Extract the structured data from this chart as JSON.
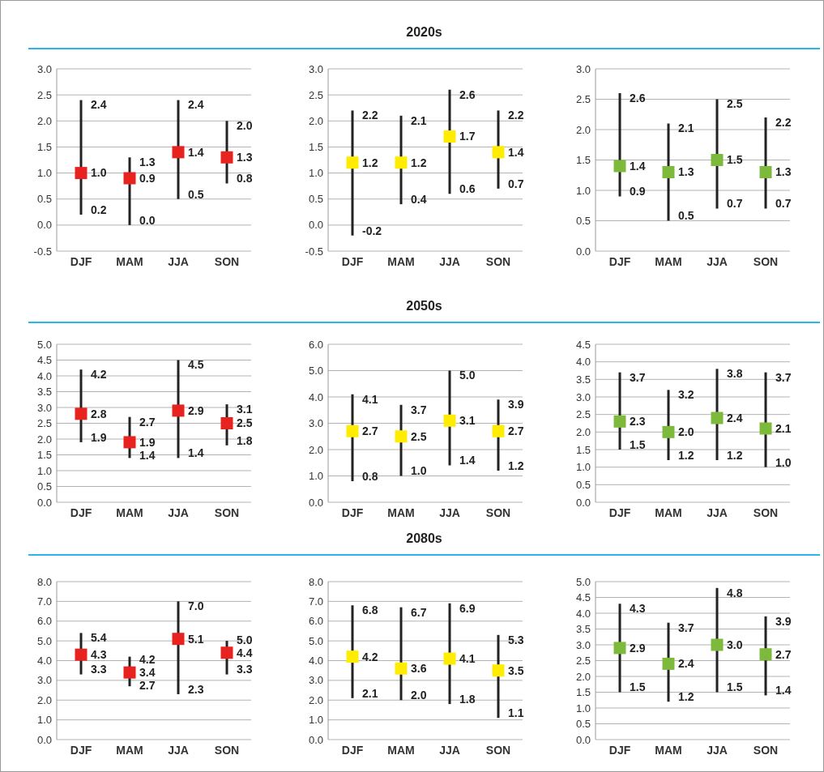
{
  "chart_data": [
    {
      "type": "scatter",
      "categories": [
        "DJF",
        "MAM",
        "JJA",
        "SON"
      ],
      "series": [
        {
          "color": "#e8231f",
          "values": [
            1.0,
            0.9,
            1.4,
            1.3
          ],
          "value_labels": [
            "1.0",
            "0.9",
            "1.4",
            "1.3"
          ],
          "errors": [
            [
              0.2,
              2.4
            ],
            [
              0.0,
              1.3
            ],
            [
              0.5,
              2.4
            ],
            [
              0.8,
              2.0
            ]
          ]
        }
      ],
      "ylim": [
        -0.5,
        3
      ],
      "yticks": [
        -0.5,
        {
          "value": 0,
          "label": "0.0"
        },
        0.5,
        {
          "value": 1,
          "label": "1.0"
        },
        1.5,
        {
          "value": 2,
          "label": "2.0"
        },
        2.5,
        {
          "value": 3,
          "label": "3.0"
        }
      ],
      "grid": "y",
      "marker": "square",
      "annotations": [
        {
          "text": "2.4",
          "x": "DJF",
          "y": 2.4
        },
        {
          "text": "0.2",
          "x": "DJF",
          "y": 0.2
        },
        {
          "text": "1.3",
          "x": "MAM",
          "y": 1.3
        },
        {
          "text": "0.0",
          "x": "MAM",
          "y": 0.0
        },
        {
          "text": "2.4",
          "x": "JJA",
          "y": 2.4
        },
        {
          "text": "0.5",
          "x": "JJA",
          "y": 0.5
        },
        {
          "text": "2.0",
          "x": "SON",
          "y": 2.0
        },
        {
          "text": "0.8",
          "x": "SON",
          "y": 0.8
        }
      ]
    },
    {
      "type": "scatter",
      "title": "2020s",
      "categories": [
        "DJF",
        "MAM",
        "JJA",
        "SON"
      ],
      "series": [
        {
          "color": "#ffec00",
          "values": [
            1.2,
            1.2,
            1.7,
            1.4
          ],
          "value_labels": [
            "1.2",
            "1.2",
            "1.7",
            "1.4"
          ],
          "errors": [
            [
              -0.2,
              2.2
            ],
            [
              0.4,
              2.1
            ],
            [
              0.6,
              2.6
            ],
            [
              0.7,
              2.2
            ]
          ]
        }
      ],
      "ylim": [
        -0.5,
        3
      ],
      "yticks": [
        -0.5,
        {
          "value": 0,
          "label": "0.0"
        },
        0.5,
        {
          "value": 1,
          "label": "1.0"
        },
        1.5,
        {
          "value": 2,
          "label": "2.0"
        },
        2.5,
        {
          "value": 3,
          "label": "3.0"
        }
      ],
      "grid": "y",
      "marker": "square",
      "annotations": [
        {
          "text": "2.2",
          "x": "DJF",
          "y": 2.2
        },
        {
          "text": "-0.2",
          "x": "DJF",
          "y": -0.2
        },
        {
          "text": "2.1",
          "x": "MAM",
          "y": 2.1
        },
        {
          "text": "0.4",
          "x": "MAM",
          "y": 0.4
        },
        {
          "text": "2.6",
          "x": "JJA",
          "y": 2.6
        },
        {
          "text": "0.6",
          "x": "JJA",
          "y": 0.6
        },
        {
          "text": "2.2",
          "x": "SON",
          "y": 2.2
        },
        {
          "text": "0.7",
          "x": "SON",
          "y": 0.7
        }
      ]
    },
    {
      "type": "scatter",
      "categories": [
        "DJF",
        "MAM",
        "JJA",
        "SON"
      ],
      "series": [
        {
          "color": "#7dba3c",
          "values": [
            1.4,
            1.3,
            1.5,
            1.3
          ],
          "value_labels": [
            "1.4",
            "1.3",
            "1.5",
            "1.3"
          ],
          "errors": [
            [
              0.9,
              2.6
            ],
            [
              0.5,
              2.1
            ],
            [
              0.7,
              2.5
            ],
            [
              0.7,
              2.2
            ]
          ]
        }
      ],
      "ylim": [
        0,
        3
      ],
      "yticks": [
        {
          "value": 0,
          "label": "0.0"
        },
        0.5,
        {
          "value": 1,
          "label": "1.0"
        },
        1.5,
        {
          "value": 2,
          "label": "2.0"
        },
        2.5,
        {
          "value": 3,
          "label": "3.0"
        }
      ],
      "grid": "y",
      "marker": "square",
      "annotations": [
        {
          "text": "2.6",
          "x": "DJF",
          "y": 2.6
        },
        {
          "text": "0.9",
          "x": "DJF",
          "y": 0.9
        },
        {
          "text": "2.1",
          "x": "MAM",
          "y": 2.1
        },
        {
          "text": "0.5",
          "x": "MAM",
          "y": 0.5
        },
        {
          "text": "2.5",
          "x": "JJA",
          "y": 2.5
        },
        {
          "text": "0.7",
          "x": "JJA",
          "y": 0.7
        },
        {
          "text": "2.2",
          "x": "SON",
          "y": 2.2
        },
        {
          "text": "0.7",
          "x": "SON",
          "y": 0.7
        }
      ]
    },
    {
      "type": "scatter",
      "categories": [
        "DJF",
        "MAM",
        "JJA",
        "SON"
      ],
      "series": [
        {
          "color": "#e8231f",
          "values": [
            2.8,
            1.9,
            2.9,
            2.5
          ],
          "value_labels": [
            "2.8",
            "1.9",
            "2.9",
            "2.5"
          ],
          "errors": [
            [
              1.9,
              4.2
            ],
            [
              1.4,
              2.7
            ],
            [
              1.4,
              4.5
            ],
            [
              1.8,
              3.1
            ]
          ]
        }
      ],
      "ylim": [
        0,
        5
      ],
      "yticks": [
        {
          "value": 0,
          "label": "0.0"
        },
        0.5,
        {
          "value": 1,
          "label": "1.0"
        },
        1.5,
        {
          "value": 2,
          "label": "2.0"
        },
        2.5,
        {
          "value": 3,
          "label": "3.0"
        },
        3.5,
        {
          "value": 4,
          "label": "4.0"
        },
        4.5,
        {
          "value": 5,
          "label": "5.0"
        }
      ],
      "grid": "y",
      "marker": "square",
      "annotations": [
        {
          "text": "4.2",
          "x": "DJF",
          "y": 4.2
        },
        {
          "text": "1.9",
          "x": "DJF",
          "y": 1.9
        },
        {
          "text": "2.7",
          "x": "MAM",
          "y": 2.7
        },
        {
          "text": "1.4",
          "x": "MAM",
          "y": 1.4
        },
        {
          "text": "4.5",
          "x": "JJA",
          "y": 4.5
        },
        {
          "text": "1.4",
          "x": "JJA",
          "y": 1.4
        },
        {
          "text": "3.1",
          "x": "SON",
          "y": 3.1
        },
        {
          "text": "1.8",
          "x": "SON",
          "y": 1.8
        }
      ]
    },
    {
      "type": "scatter",
      "title": "2050s",
      "categories": [
        "DJF",
        "MAM",
        "JJA",
        "SON"
      ],
      "series": [
        {
          "color": "#ffec00",
          "values": [
            2.7,
            2.5,
            3.1,
            2.7
          ],
          "value_labels": [
            "2.7",
            "2.5",
            "3.1",
            "2.7"
          ],
          "errors": [
            [
              0.8,
              4.1
            ],
            [
              1.0,
              3.7
            ],
            [
              1.4,
              5.0
            ],
            [
              1.2,
              3.9
            ]
          ]
        }
      ],
      "ylim": [
        0,
        6
      ],
      "yticks": [
        {
          "value": 0,
          "label": "0.0"
        },
        {
          "value": 1,
          "label": "1.0"
        },
        {
          "value": 2,
          "label": "2.0"
        },
        {
          "value": 3,
          "label": "3.0"
        },
        {
          "value": 4,
          "label": "4.0"
        },
        {
          "value": 5,
          "label": "5.0"
        },
        {
          "value": 6,
          "label": "6.0"
        }
      ],
      "grid": "y",
      "marker": "square",
      "annotations": [
        {
          "text": "4.1",
          "x": "DJF",
          "y": 4.1
        },
        {
          "text": "0.8",
          "x": "DJF",
          "y": 0.8
        },
        {
          "text": "3.7",
          "x": "MAM",
          "y": 3.7
        },
        {
          "text": "1.0",
          "x": "MAM",
          "y": 1.0
        },
        {
          "text": "5.0",
          "x": "JJA",
          "y": 5.0
        },
        {
          "text": "1.4",
          "x": "JJA",
          "y": 1.4
        },
        {
          "text": "3.9",
          "x": "SON",
          "y": 3.9
        },
        {
          "text": "1.2",
          "x": "SON",
          "y": 1.2
        }
      ]
    },
    {
      "type": "scatter",
      "categories": [
        "DJF",
        "MAM",
        "JJA",
        "SON"
      ],
      "series": [
        {
          "color": "#7dba3c",
          "values": [
            2.3,
            2.0,
            2.4,
            2.1
          ],
          "value_labels": [
            "2.3",
            "2.0",
            "2.4",
            "2.1"
          ],
          "errors": [
            [
              1.5,
              3.7
            ],
            [
              1.2,
              3.2
            ],
            [
              1.2,
              3.8
            ],
            [
              1.0,
              3.7
            ]
          ]
        }
      ],
      "ylim": [
        0,
        4.5
      ],
      "yticks": [
        {
          "value": 0,
          "label": "0.0"
        },
        0.5,
        {
          "value": 1,
          "label": "1.0"
        },
        1.5,
        {
          "value": 2,
          "label": "2.0"
        },
        2.5,
        {
          "value": 3,
          "label": "3.0"
        },
        3.5,
        {
          "value": 4,
          "label": "4.0"
        },
        4.5
      ],
      "grid": "y",
      "marker": "square",
      "annotations": [
        {
          "text": "3.7",
          "x": "DJF",
          "y": 3.7
        },
        {
          "text": "1.5",
          "x": "DJF",
          "y": 1.5
        },
        {
          "text": "3.2",
          "x": "MAM",
          "y": 3.2
        },
        {
          "text": "1.2",
          "x": "MAM",
          "y": 1.2
        },
        {
          "text": "3.8",
          "x": "JJA",
          "y": 3.8
        },
        {
          "text": "1.2",
          "x": "JJA",
          "y": 1.2
        },
        {
          "text": "3.7",
          "x": "SON",
          "y": 3.7
        },
        {
          "text": "1.0",
          "x": "SON",
          "y": 1.0
        }
      ]
    },
    {
      "type": "scatter",
      "categories": [
        "DJF",
        "MAM",
        "JJA",
        "SON"
      ],
      "series": [
        {
          "color": "#e8231f",
          "values": [
            4.3,
            3.4,
            5.1,
            4.4
          ],
          "value_labels": [
            "4.3",
            "3.4",
            "5.1",
            "4.4"
          ],
          "errors": [
            [
              3.3,
              5.4
            ],
            [
              2.7,
              4.2
            ],
            [
              2.3,
              7.0
            ],
            [
              3.3,
              5.0
            ]
          ]
        }
      ],
      "ylim": [
        0,
        8
      ],
      "yticks": [
        {
          "value": 0,
          "label": "0.0"
        },
        {
          "value": 1,
          "label": "1.0"
        },
        {
          "value": 2,
          "label": "2.0"
        },
        {
          "value": 3,
          "label": "3.0"
        },
        {
          "value": 4,
          "label": "4.0"
        },
        {
          "value": 5,
          "label": "5.0"
        },
        {
          "value": 6,
          "label": "6.0"
        },
        {
          "value": 7,
          "label": "7.0"
        },
        {
          "value": 8,
          "label": "8.0"
        }
      ],
      "grid": "y",
      "marker": "square",
      "annotations": [
        {
          "text": "5.4",
          "x": "DJF",
          "y": 5.4
        },
        {
          "text": "3.3",
          "x": "DJF",
          "y": 3.3
        },
        {
          "text": "4.2",
          "x": "MAM",
          "y": 4.2
        },
        {
          "text": "2.7",
          "x": "MAM",
          "y": 2.7
        },
        {
          "text": "7.0",
          "x": "JJA",
          "y": 7.0
        },
        {
          "text": "2.3",
          "x": "JJA",
          "y": 2.3
        },
        {
          "text": "5.0",
          "x": "SON",
          "y": 5.0
        },
        {
          "text": "3.3",
          "x": "SON",
          "y": 3.3
        }
      ]
    },
    {
      "type": "scatter",
      "title": "2080s",
      "categories": [
        "DJF",
        "MAM",
        "JJA",
        "SON"
      ],
      "series": [
        {
          "color": "#ffec00",
          "values": [
            4.2,
            3.6,
            4.1,
            3.5
          ],
          "value_labels": [
            "4.2",
            "3.6",
            "4.1",
            "3.5"
          ],
          "errors": [
            [
              2.1,
              6.8
            ],
            [
              2.0,
              6.7
            ],
            [
              1.8,
              6.9
            ],
            [
              1.1,
              5.3
            ]
          ]
        }
      ],
      "ylim": [
        0,
        8
      ],
      "yticks": [
        {
          "value": 0,
          "label": "0.0"
        },
        {
          "value": 1,
          "label": "1.0"
        },
        {
          "value": 2,
          "label": "2.0"
        },
        {
          "value": 3,
          "label": "3.0"
        },
        {
          "value": 4,
          "label": "4.0"
        },
        {
          "value": 5,
          "label": "5.0"
        },
        {
          "value": 6,
          "label": "6.0"
        },
        {
          "value": 7,
          "label": "7.0"
        },
        {
          "value": 8,
          "label": "8.0"
        }
      ],
      "grid": "y",
      "marker": "square",
      "annotations": [
        {
          "text": "6.8",
          "x": "DJF",
          "y": 6.8
        },
        {
          "text": "2.1",
          "x": "DJF",
          "y": 2.1
        },
        {
          "text": "6.7",
          "x": "MAM",
          "y": 6.7
        },
        {
          "text": "2.0",
          "x": "MAM",
          "y": 2.0
        },
        {
          "text": "6.9",
          "x": "JJA",
          "y": 6.9
        },
        {
          "text": "1.8",
          "x": "JJA",
          "y": 1.8
        },
        {
          "text": "5.3",
          "x": "SON",
          "y": 5.3
        },
        {
          "text": "1.1",
          "x": "SON",
          "y": 1.1
        }
      ]
    },
    {
      "type": "scatter",
      "categories": [
        "DJF",
        "MAM",
        "JJA",
        "SON"
      ],
      "series": [
        {
          "color": "#7dba3c",
          "values": [
            2.9,
            2.4,
            3.0,
            2.7
          ],
          "value_labels": [
            "2.9",
            "2.4",
            "3.0",
            "2.7"
          ],
          "errors": [
            [
              1.5,
              4.3
            ],
            [
              1.2,
              3.7
            ],
            [
              1.5,
              4.8
            ],
            [
              1.4,
              3.9
            ]
          ]
        }
      ],
      "ylim": [
        0,
        5
      ],
      "yticks": [
        {
          "value": 0,
          "label": "0.0"
        },
        0.5,
        {
          "value": 1,
          "label": "1.0"
        },
        1.5,
        {
          "value": 2,
          "label": "2.0"
        },
        2.5,
        {
          "value": 3,
          "label": "3.0"
        },
        3.5,
        {
          "value": 4,
          "label": "4.0"
        },
        4.5,
        {
          "value": 5,
          "label": "5.0"
        }
      ],
      "grid": "y",
      "marker": "square",
      "annotations": [
        {
          "text": "4.3",
          "x": "DJF",
          "y": 4.3
        },
        {
          "text": "1.5",
          "x": "DJF",
          "y": 1.5
        },
        {
          "text": "3.7",
          "x": "MAM",
          "y": 3.7
        },
        {
          "text": "1.2",
          "x": "MAM",
          "y": 1.2
        },
        {
          "text": "4.8",
          "x": "JJA",
          "y": 4.8
        },
        {
          "text": "1.5",
          "x": "JJA",
          "y": 1.5
        },
        {
          "text": "3.9",
          "x": "SON",
          "y": 3.9
        },
        {
          "text": "1.4",
          "x": "SON",
          "y": 1.4
        }
      ]
    }
  ]
}
